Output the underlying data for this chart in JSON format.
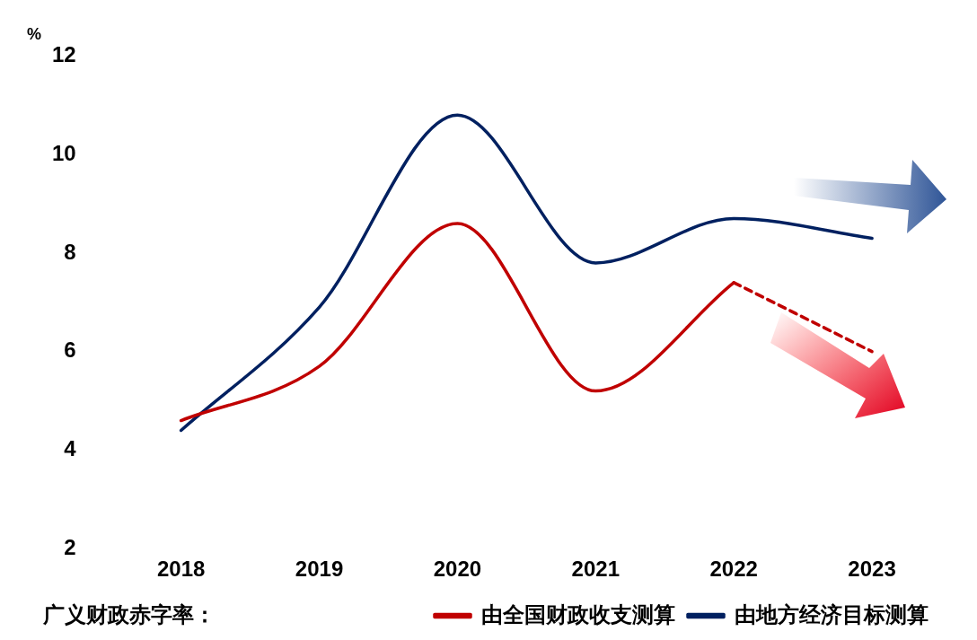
{
  "chart_data": {
    "type": "line",
    "ylabel": "%",
    "legend_title": "广义财政赤字率：",
    "categories": [
      "2018",
      "2019",
      "2020",
      "2021",
      "2022",
      "2023"
    ],
    "ylim": [
      2,
      12
    ],
    "yticks": [
      2,
      4,
      6,
      8,
      10,
      12
    ],
    "grid": false,
    "legend": "bottom",
    "marker": "none",
    "series": [
      {
        "name": "由全国财政收支测算",
        "color": "#c00000",
        "line_style": "solid",
        "values": [
          4.6,
          5.7,
          8.6,
          5.2,
          7.4,
          null
        ]
      },
      {
        "color": "#c00000",
        "line_style": "dashed",
        "values": [
          null,
          null,
          null,
          null,
          7.4,
          6.0
        ]
      },
      {
        "name": "由地方经济目标测算",
        "color": "#002060",
        "line_style": "solid",
        "values": [
          4.4,
          6.9,
          10.8,
          7.8,
          8.7,
          8.3
        ]
      }
    ]
  }
}
